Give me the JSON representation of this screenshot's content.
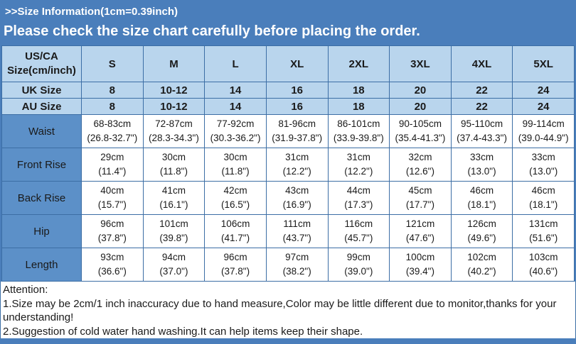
{
  "banner": {
    "line1": ">>Size Information(1cm=0.39inch)",
    "line2": "Please check the size chart carefully before placing the order."
  },
  "table": {
    "corner": {
      "line1": "US/CA",
      "line2": "Size(cm/inch)"
    },
    "columns": [
      "S",
      "M",
      "L",
      "XL",
      "2XL",
      "3XL",
      "4XL",
      "5XL"
    ],
    "size_rows": [
      {
        "label": "UK Size",
        "values": [
          "8",
          "10-12",
          "14",
          "16",
          "18",
          "20",
          "22",
          "24"
        ]
      },
      {
        "label": "AU Size",
        "values": [
          "8",
          "10-12",
          "14",
          "16",
          "18",
          "20",
          "22",
          "24"
        ]
      }
    ],
    "measurement_rows": [
      {
        "label": "Waist",
        "cm": [
          "68-83cm",
          "72-87cm",
          "77-92cm",
          "81-96cm",
          "86-101cm",
          "90-105cm",
          "95-110cm",
          "99-114cm"
        ],
        "inch": [
          "(26.8-32.7\")",
          "(28.3-34.3\")",
          "(30.3-36.2\")",
          "(31.9-37.8\")",
          "(33.9-39.8\")",
          "(35.4-41.3\")",
          "(37.4-43.3\")",
          "(39.0-44.9\")"
        ]
      },
      {
        "label": "Front Rise",
        "cm": [
          "29cm",
          "30cm",
          "30cm",
          "31cm",
          "31cm",
          "32cm",
          "33cm",
          "33cm"
        ],
        "inch": [
          "(11.4\")",
          "(11.8\")",
          "(11.8\")",
          "(12.2\")",
          "(12.2\")",
          "(12.6\")",
          "(13.0\")",
          "(13.0\")"
        ]
      },
      {
        "label": "Back Rise",
        "cm": [
          "40cm",
          "41cm",
          "42cm",
          "43cm",
          "44cm",
          "45cm",
          "46cm",
          "46cm"
        ],
        "inch": [
          "(15.7\")",
          "(16.1\")",
          "(16.5\")",
          "(16.9\")",
          "(17.3\")",
          "(17.7\")",
          "(18.1\")",
          "(18.1\")"
        ]
      },
      {
        "label": "Hip",
        "cm": [
          "96cm",
          "101cm",
          "106cm",
          "111cm",
          "116cm",
          "121cm",
          "126cm",
          "131cm"
        ],
        "inch": [
          "(37.8\")",
          "(39.8\")",
          "(41.7\")",
          "(43.7\")",
          "(45.7\")",
          "(47.6\")",
          "(49.6\")",
          "(51.6\")"
        ]
      },
      {
        "label": "Length",
        "cm": [
          "93cm",
          "94cm",
          "96cm",
          "97cm",
          "99cm",
          "100cm",
          "102cm",
          "103cm"
        ],
        "inch": [
          "(36.6\")",
          "(37.0\")",
          "(37.8\")",
          "(38.2\")",
          "(39.0\")",
          "(39.4\")",
          "(40.2\")",
          "(40.6\")"
        ]
      }
    ]
  },
  "attention": {
    "title": "Attention:",
    "notes": [
      "1.Size may be 2cm/1 inch inaccuracy due to hand measure,Color may be little different due to monitor,thanks for your understanding!",
      "2.Suggestion of cold water hand washing.It can help items keep their shape."
    ]
  },
  "colors": {
    "background_blue": "#4a7ebb",
    "header_light_blue": "#b9d5ed",
    "label_blue": "#5c90c8",
    "border_blue": "#3c6ea5",
    "banner_text": "#ffffff",
    "text_dark": "#1a1a1a"
  }
}
